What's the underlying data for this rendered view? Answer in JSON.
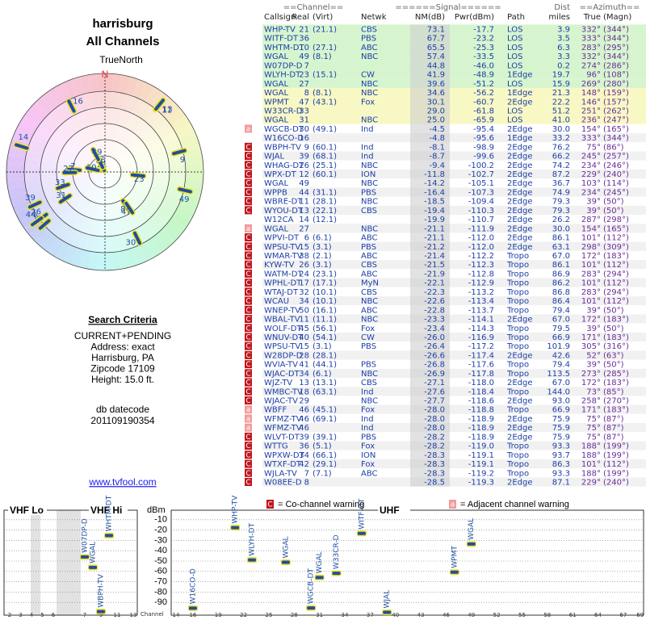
{
  "header": {
    "title": "harrisburg",
    "subtitle": "All Channels"
  },
  "radar": {
    "north_label": "TrueNorth",
    "n_label": "N",
    "stations": [
      {
        "label": 21,
        "azimuth": 332,
        "nm": 73.1
      },
      {
        "label": 36,
        "azimuth": 333,
        "nm": 67.7
      },
      {
        "label": 10,
        "azimuth": 283,
        "nm": 65.5
      },
      {
        "label": 49,
        "azimuth": 332,
        "nm": 57.4
      },
      {
        "label": 7,
        "azimuth": 274,
        "nm": 44.8
      },
      {
        "label": 23,
        "azimuth": 96,
        "nm": 41.9
      },
      {
        "label": 27,
        "azimuth": 269,
        "nm": 39.6
      },
      {
        "label": 8,
        "azimuth": 148,
        "nm": 34.6
      },
      {
        "label": 47,
        "azimuth": 146,
        "nm": 30.1
      },
      {
        "label": 33,
        "azimuth": 251,
        "nm": 29.0
      },
      {
        "label": 31,
        "azimuth": 236,
        "nm": 25.0
      },
      {
        "label": 30,
        "azimuth": 154,
        "nm": -4.5
      },
      {
        "label": 16,
        "azimuth": 333,
        "nm": -4.8
      },
      {
        "label": 9,
        "azimuth": 75,
        "nm": -8.1
      },
      {
        "label": 39,
        "azimuth": 245,
        "nm": -8.7
      },
      {
        "label": 26,
        "azimuth": 234,
        "nm": -9.4
      },
      {
        "label": 12,
        "azimuth": 229,
        "nm": -11.8
      },
      {
        "label": 49,
        "azimuth": 103,
        "nm": -14.2
      },
      {
        "label": 44,
        "azimuth": 234,
        "nm": -16.4
      },
      {
        "label": 11,
        "azimuth": 39,
        "nm": -18.5
      },
      {
        "label": 13,
        "azimuth": 39,
        "nm": -19.4
      },
      {
        "label": 14,
        "azimuth": 287,
        "nm": -19.9
      }
    ]
  },
  "search": {
    "heading": "Search Criteria",
    "lines": [
      "CURRENT+PENDING",
      "Address: exact",
      "Harrisburg, PA",
      "Zipcode 17109",
      "Height: 15.0 ft."
    ],
    "datecode_label": "db datecode",
    "datecode": "201109190354",
    "link": "www.tvfool.com"
  },
  "table": {
    "groups": [
      "==Channel==",
      "======Signal======",
      "Dist",
      "==Azimuth=="
    ],
    "columns": [
      "Callsign",
      "Real",
      "(Virt)",
      "Netwk",
      "NM(dB)",
      "Pwr(dBm)",
      "Path",
      "miles",
      "True",
      "(Magn)"
    ],
    "rows": [
      [
        null,
        "WHP-TV",
        21,
        "(21.1)",
        "CBS",
        "73.1",
        "-17.7",
        "LOS",
        "3.9",
        "332°",
        "(344°)"
      ],
      [
        null,
        "WITF-DT",
        36,
        null,
        "PBS",
        "67.7",
        "-23.2",
        "LOS",
        "3.5",
        "333°",
        "(344°)"
      ],
      [
        null,
        "WHTM-DT",
        10,
        "(27.1)",
        "ABC",
        "65.5",
        "-25.3",
        "LOS",
        "6.3",
        "283°",
        "(295°)"
      ],
      [
        null,
        "WGAL",
        49,
        "(8.1)",
        "NBC",
        "57.4",
        "-33.5",
        "LOS",
        "3.3",
        "332°",
        "(344°)"
      ],
      [
        null,
        "W07DP-D",
        7,
        null,
        null,
        "44.8",
        "-46.0",
        "LOS",
        "0.2",
        "274°",
        "(286°)"
      ],
      [
        null,
        "WLYH-DT",
        23,
        "(15.1)",
        "CW",
        "41.9",
        "-48.9",
        "1Edge",
        "19.7",
        "96°",
        "(108°)"
      ],
      [
        null,
        "WGAL",
        27,
        null,
        "NBC",
        "39.6",
        "-51.2",
        "LOS",
        "15.9",
        "269°",
        "(280°)"
      ],
      [
        null,
        "WGAL",
        8,
        "(8.1)",
        "NBC",
        "34.6",
        "-56.2",
        "1Edge",
        "21.3",
        "148°",
        "(159°)"
      ],
      [
        null,
        "WPMT",
        47,
        "(43.1)",
        "Fox",
        "30.1",
        "-60.7",
        "2Edge",
        "22.2",
        "146°",
        "(157°)"
      ],
      [
        null,
        "W33CR-D",
        33,
        null,
        null,
        "29.0",
        "-61.8",
        "LOS",
        "51.2",
        "251°",
        "(262°)"
      ],
      [
        null,
        "WGAL",
        31,
        null,
        "NBC",
        "25.0",
        "-65.9",
        "LOS",
        "41.0",
        "236°",
        "(247°)"
      ],
      [
        "a",
        "WGCB-DT",
        30,
        "(49.1)",
        "Ind",
        "-4.5",
        "-95.4",
        "2Edge",
        "30.0",
        "154°",
        "(165°)"
      ],
      [
        null,
        "W16CO-D",
        16,
        null,
        null,
        "-4.8",
        "-95.6",
        "1Edge",
        "33.2",
        "333°",
        "(344°)"
      ],
      [
        "C",
        "WBPH-TV",
        9,
        "(60.1)",
        "Ind",
        "-8.1",
        "-98.9",
        "2Edge",
        "76.2",
        "75°",
        "(86°)"
      ],
      [
        "C",
        "WJAL",
        39,
        "(68.1)",
        "Ind",
        "-8.7",
        "-99.6",
        "2Edge",
        "66.2",
        "245°",
        "(257°)"
      ],
      [
        "C",
        "WHAG-DT",
        26,
        "(25.1)",
        "NBC",
        "-9.4",
        "-100.2",
        "2Edge",
        "74.2",
        "234°",
        "(246°)"
      ],
      [
        "C",
        "WPX-DT",
        12,
        "(60.1)",
        "ION",
        "-11.8",
        "-102.7",
        "2Edge",
        "87.2",
        "229°",
        "(240°)"
      ],
      [
        "C",
        "WGAL",
        49,
        null,
        "NBC",
        "-14.2",
        "-105.1",
        "2Edge",
        "36.7",
        "103°",
        "(114°)"
      ],
      [
        "C",
        "WPPB",
        44,
        "(31.1)",
        "PBS",
        "-16.4",
        "-107.3",
        "2Edge",
        "74.9",
        "234°",
        "(245°)"
      ],
      [
        "C",
        "WBRE-DT",
        11,
        "(28.1)",
        "NBC",
        "-18.5",
        "-109.4",
        "2Edge",
        "79.3",
        "39°",
        "(50°)"
      ],
      [
        "C",
        "WYOU-DT",
        13,
        "(22.1)",
        "CBS",
        "-19.4",
        "-110.3",
        "2Edge",
        "79.3",
        "39°",
        "(50°)"
      ],
      [
        null,
        "W12CA",
        14,
        "(12.1)",
        null,
        "-19.9",
        "-110.7",
        "2Edge",
        "26.2",
        "287°",
        "(298°)"
      ],
      [
        "a",
        "WGAL",
        27,
        null,
        "NBC",
        "-21.1",
        "-111.9",
        "2Edge",
        "30.0",
        "154°",
        "(165°)"
      ],
      [
        "C",
        "WPVI-DT",
        6,
        "(6.1)",
        "ABC",
        "-21.1",
        "-112.0",
        "2Edge",
        "86.1",
        "101°",
        "(112°)"
      ],
      [
        "C",
        "WPSU-TV",
        15,
        "(3.1)",
        "PBS",
        "-21.2",
        "-112.0",
        "2Edge",
        "63.1",
        "298°",
        "(309°)"
      ],
      [
        "C",
        "WMAR-TV",
        38,
        "(2.1)",
        "ABC",
        "-21.4",
        "-112.2",
        "Tropo",
        "67.0",
        "172°",
        "(183°)"
      ],
      [
        "C",
        "KYW-TV",
        26,
        "(3.1)",
        "CBS",
        "-21.5",
        "-112.3",
        "Tropo",
        "86.1",
        "101°",
        "(112°)"
      ],
      [
        "C",
        "WATM-DT",
        24,
        "(23.1)",
        "ABC",
        "-21.9",
        "-112.8",
        "Tropo",
        "86.9",
        "283°",
        "(294°)"
      ],
      [
        "C",
        "WPHL-DT",
        17,
        "(17.1)",
        "MyN",
        "-22.1",
        "-112.9",
        "Tropo",
        "86.2",
        "101°",
        "(112°)"
      ],
      [
        "C",
        "WTAJ-DT",
        32,
        "(10.1)",
        "CBS",
        "-22.3",
        "-113.2",
        "Tropo",
        "86.8",
        "283°",
        "(294°)"
      ],
      [
        "C",
        "WCAU",
        34,
        "(10.1)",
        "NBC",
        "-22.6",
        "-113.4",
        "Tropo",
        "86.4",
        "101°",
        "(112°)"
      ],
      [
        "C",
        "WNEP-TV",
        50,
        "(16.1)",
        "ABC",
        "-22.8",
        "-113.7",
        "Tropo",
        "79.4",
        "39°",
        "(50°)"
      ],
      [
        "C",
        "WBAL-TV",
        11,
        "(11.1)",
        "NBC",
        "-23.3",
        "-114.1",
        "2Edge",
        "67.0",
        "172°",
        "(183°)"
      ],
      [
        "C",
        "WOLF-DT",
        45,
        "(56.1)",
        "Fox",
        "-23.4",
        "-114.3",
        "Tropo",
        "79.5",
        "39°",
        "(50°)"
      ],
      [
        "C",
        "WNUV-DT",
        40,
        "(54.1)",
        "CW",
        "-26.0",
        "-116.9",
        "Tropo",
        "66.9",
        "171°",
        "(183°)"
      ],
      [
        "C",
        "WPSU-TV",
        15,
        "(3.1)",
        "PBS",
        "-26.4",
        "-117.2",
        "Tropo",
        "101.9",
        "305°",
        "(316°)"
      ],
      [
        "C",
        "W28DP-D",
        28,
        "(28.1)",
        null,
        "-26.6",
        "-117.4",
        "2Edge",
        "42.6",
        "52°",
        "(63°)"
      ],
      [
        "C",
        "WVIA-TV",
        41,
        "(44.1)",
        "PBS",
        "-26.8",
        "-117.6",
        "Tropo",
        "79.4",
        "39°",
        "(50°)"
      ],
      [
        "C",
        "WJAC-DT",
        34,
        "(6.1)",
        "NBC",
        "-26.9",
        "-117.8",
        "Tropo",
        "113.5",
        "273°",
        "(285°)"
      ],
      [
        "C",
        "WJZ-TV",
        13,
        "(13.1)",
        "CBS",
        "-27.1",
        "-118.0",
        "2Edge",
        "67.0",
        "172°",
        "(183°)"
      ],
      [
        "C",
        "WMBC-TV",
        18,
        "(63.1)",
        "Ind",
        "-27.6",
        "-118.4",
        "Tropo",
        "144.0",
        "73°",
        "(85°)"
      ],
      [
        "C",
        "WJAC-TV",
        29,
        null,
        "NBC",
        "-27.7",
        "-118.6",
        "2Edge",
        "93.0",
        "258°",
        "(270°)"
      ],
      [
        "a",
        "WBFF",
        46,
        "(45.1)",
        "Fox",
        "-28.0",
        "-118.8",
        "Tropo",
        "66.9",
        "171°",
        "(183°)"
      ],
      [
        "a",
        "WFMZ-TV",
        46,
        "(69.1)",
        "Ind",
        "-28.0",
        "-118.9",
        "2Edge",
        "75.9",
        "75°",
        "(87°)"
      ],
      [
        "a",
        "WFMZ-TV",
        46,
        null,
        "Ind",
        "-28.0",
        "-118.9",
        "2Edge",
        "75.9",
        "75°",
        "(87°)"
      ],
      [
        "C",
        "WLVT-DT",
        39,
        "(39.1)",
        "PBS",
        "-28.2",
        "-118.9",
        "2Edge",
        "75.9",
        "75°",
        "(87°)"
      ],
      [
        "C",
        "WTTG",
        36,
        "(5.1)",
        "Fox",
        "-28.2",
        "-119.0",
        "Tropo",
        "93.3",
        "188°",
        "(199°)"
      ],
      [
        "C",
        "WPXW-DT",
        34,
        "(66.1)",
        "ION",
        "-28.3",
        "-119.1",
        "Tropo",
        "93.7",
        "188°",
        "(199°)"
      ],
      [
        "C",
        "WTXF-DT",
        42,
        "(29.1)",
        "Fox",
        "-28.3",
        "-119.1",
        "Tropo",
        "86.3",
        "101°",
        "(112°)"
      ],
      [
        "C",
        "WJLA-TV",
        7,
        "(7.1)",
        "ABC",
        "-28.3",
        "-119.2",
        "Tropo",
        "93.3",
        "188°",
        "(199°)"
      ],
      [
        "C",
        "W08EE-D",
        8,
        null,
        null,
        "-28.5",
        "-119.3",
        "2Edge",
        "87.1",
        "229°",
        "(240°)"
      ]
    ]
  },
  "legend": {
    "co_mark": "C",
    "co_text": "= Co-channel warning",
    "adj_mark": "a",
    "adj_text": "= Adjacent channel warning"
  },
  "spectrum": {
    "panels": [
      "VHF Lo",
      "VHF Hi",
      "UHF"
    ],
    "y_label": "dBm",
    "x_label": "Channel",
    "ylim": [
      -100,
      0
    ],
    "yticks": [
      -10,
      -20,
      -30,
      -40,
      -50,
      -60,
      -70,
      -80,
      -90
    ],
    "vhf_lo_ticks": [
      2,
      3,
      4,
      5,
      6
    ],
    "vhf_hi_ticks": [
      7,
      9,
      11,
      13
    ],
    "uhf_ticks": [
      14,
      16,
      19,
      22,
      25,
      28,
      31,
      34,
      37,
      40,
      43,
      46,
      49,
      52,
      55,
      58,
      61,
      64,
      67,
      69
    ],
    "color": "#1f4fa0",
    "points": [
      {
        "label": "WHP-TV",
        "channel": 21,
        "pwr": -17.7
      },
      {
        "label": "WITF-DT",
        "channel": 36,
        "pwr": -23.2
      },
      {
        "label": "WHTM-DT",
        "channel": 10,
        "pwr": -25.3
      },
      {
        "label": "WGAL",
        "channel": 49,
        "pwr": -33.5
      },
      {
        "label": "W07DP-D",
        "channel": 7,
        "pwr": -46.0
      },
      {
        "label": "WLYH-DT",
        "channel": 23,
        "pwr": -48.9
      },
      {
        "label": "WGAL",
        "channel": 27,
        "pwr": -51.2
      },
      {
        "label": "WGAL",
        "channel": 8,
        "pwr": -56.2
      },
      {
        "label": "WPMT",
        "channel": 47,
        "pwr": -60.7
      },
      {
        "label": "W33CR-D",
        "channel": 33,
        "pwr": -61.8
      },
      {
        "label": "WGAL",
        "channel": 31,
        "pwr": -65.9
      },
      {
        "label": "WGCB-DT",
        "channel": 30,
        "pwr": -95.4
      },
      {
        "label": "W16CO-D",
        "channel": 16,
        "pwr": -95.6
      },
      {
        "label": "WBPH-TV",
        "channel": 9,
        "pwr": -98.9
      },
      {
        "label": "WJAL",
        "channel": 39,
        "pwr": -99.6
      }
    ]
  }
}
